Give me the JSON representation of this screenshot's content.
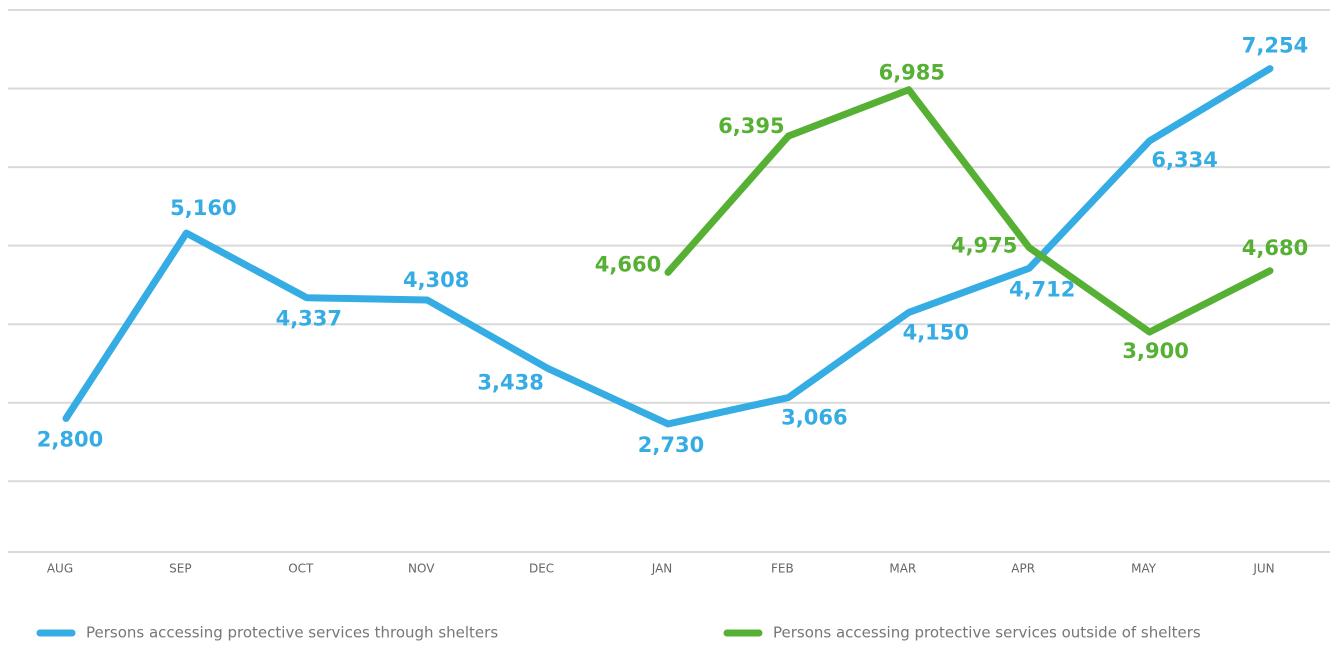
{
  "chart_data": {
    "type": "line",
    "categories": [
      "AUG",
      "SEP",
      "OCT",
      "NOV",
      "DEC",
      "JAN",
      "FEB",
      "MAR",
      "APR",
      "MAY",
      "JUN"
    ],
    "series": [
      {
        "name": "Persons accessing protective services through shelters",
        "color": "#35ace3",
        "values": [
          2800,
          5160,
          4337,
          4308,
          3438,
          2730,
          3066,
          4150,
          4712,
          6334,
          7254
        ],
        "value_labels": [
          "2,800",
          "5,160",
          "4,337",
          "4,308",
          "3,438",
          "2,730",
          "3,066",
          "4,150",
          "4,712",
          "6,334",
          "7,254"
        ]
      },
      {
        "name": "Persons accessing protective services outside of shelters",
        "color": "#55b033",
        "values": [
          null,
          null,
          null,
          null,
          null,
          4660,
          6395,
          6985,
          4975,
          3900,
          4680
        ],
        "value_labels": [
          null,
          null,
          null,
          null,
          null,
          "4,660",
          "6,395",
          "6,985",
          "4,975",
          "3,900",
          "4,680"
        ]
      }
    ],
    "ylim": [
      1100,
      8000
    ],
    "yticks": [
      2000,
      3000,
      4000,
      5000,
      6000,
      7000,
      8000
    ],
    "grid": true,
    "legend": "bottom"
  }
}
